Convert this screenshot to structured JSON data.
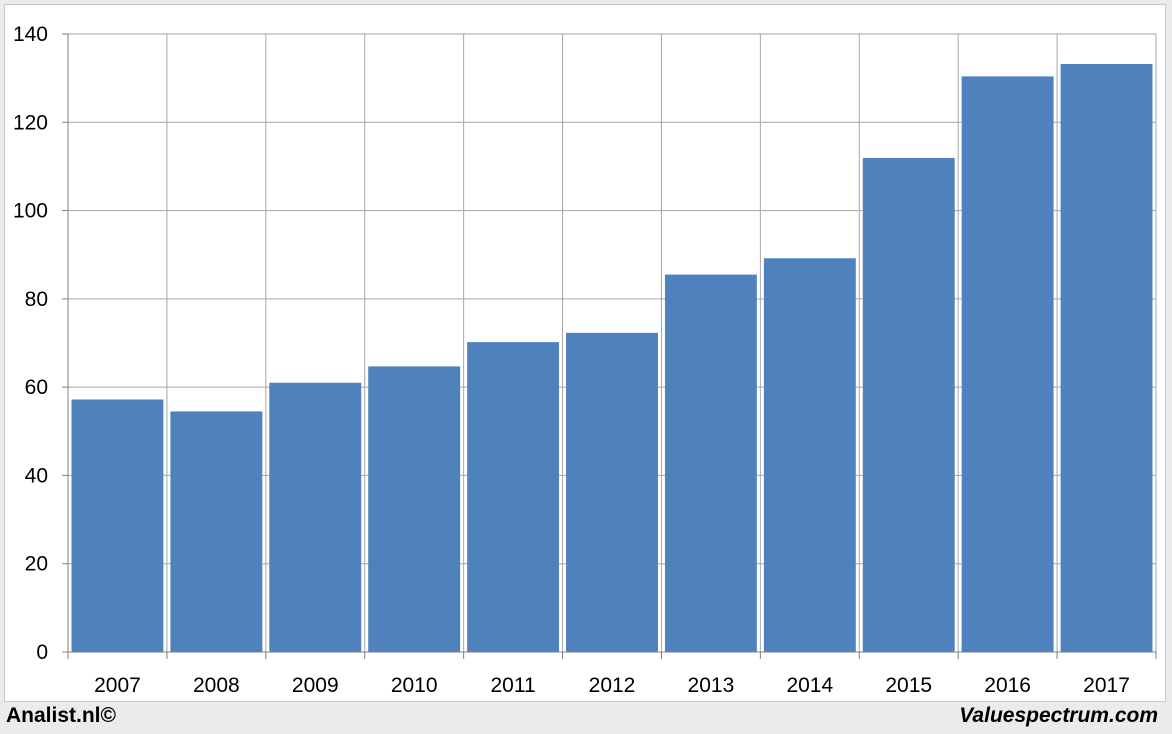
{
  "chart_data": {
    "type": "bar",
    "categories": [
      "2007",
      "2008",
      "2009",
      "2010",
      "2011",
      "2012",
      "2013",
      "2014",
      "2015",
      "2016",
      "2017"
    ],
    "values": [
      57.2,
      54.5,
      61.0,
      64.7,
      70.2,
      72.3,
      85.5,
      89.2,
      111.9,
      130.4,
      133.2
    ],
    "title": "",
    "xlabel": "",
    "ylabel": "",
    "ylim": [
      0,
      140
    ],
    "yticks": [
      "0",
      "20",
      "40",
      "60",
      "80",
      "100",
      "120",
      "140"
    ],
    "grid": true,
    "legend": "none",
    "bar_color": "#4f81bd",
    "grid_color": "#a6a6a6"
  },
  "footer": {
    "left_text": "Analist.nl©",
    "right_text": "Valuespectrum.com"
  }
}
